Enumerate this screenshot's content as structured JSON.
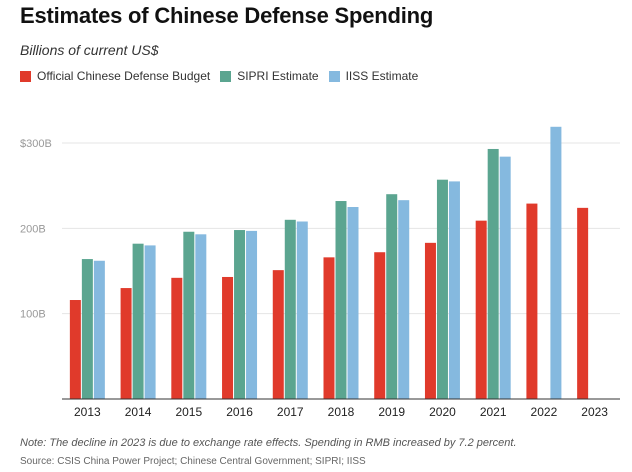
{
  "title": "Estimates of Chinese Defense Spending",
  "subtitle": "Billions of current US$",
  "legend": [
    {
      "label": "Official Chinese Defense Budget",
      "color": "#e03a2b"
    },
    {
      "label": "SIPRI Estimate",
      "color": "#5ba590"
    },
    {
      "label": "IISS Estimate",
      "color": "#85b9df"
    }
  ],
  "note": "Note: The decline in 2023 is due to exchange rate effects. Spending in RMB increased by 7.2 percent.",
  "source": "Source: CSIS China Power Project; Chinese Central Government; SIPRI; IISS",
  "chart_data": {
    "type": "bar",
    "title": "Estimates of Chinese Defense Spending",
    "subtitle": "Billions of current US$",
    "categories": [
      "2013",
      "2014",
      "2015",
      "2016",
      "2017",
      "2018",
      "2019",
      "2020",
      "2021",
      "2022",
      "2023"
    ],
    "ylim": [
      0,
      320
    ],
    "yticks": [
      100,
      200,
      300
    ],
    "ytick_labels": [
      "100B",
      "200B",
      "$300B"
    ],
    "grid": true,
    "legend_position": "top-left",
    "series": [
      {
        "name": "Official Chinese Defense Budget",
        "color": "#e03a2b",
        "values": [
          116,
          130,
          142,
          143,
          151,
          166,
          172,
          183,
          209,
          229,
          224
        ]
      },
      {
        "name": "SIPRI Estimate",
        "color": "#5ba590",
        "values": [
          164,
          182,
          196,
          198,
          210,
          232,
          240,
          257,
          293,
          null,
          null
        ]
      },
      {
        "name": "IISS Estimate",
        "color": "#85b9df",
        "values": [
          162,
          180,
          193,
          197,
          208,
          225,
          233,
          255,
          284,
          319,
          null
        ]
      }
    ]
  }
}
